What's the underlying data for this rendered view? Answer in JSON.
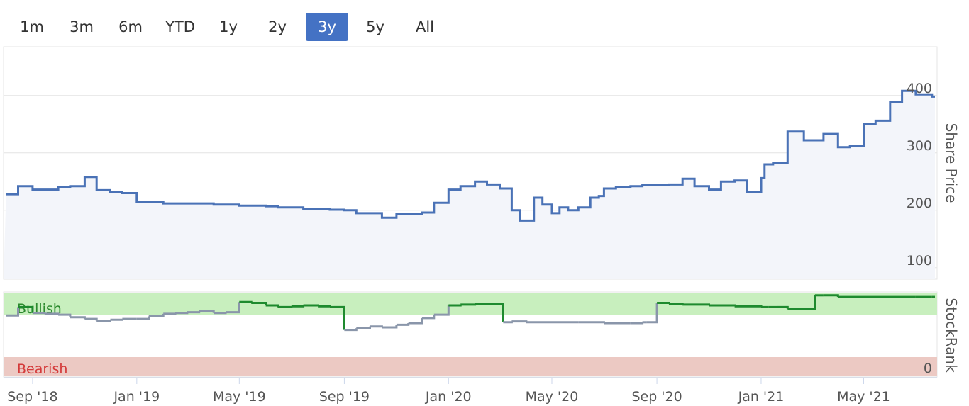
{
  "range_selector": {
    "buttons": [
      {
        "label": "1m"
      },
      {
        "label": "3m"
      },
      {
        "label": "6m"
      },
      {
        "label": "YTD"
      },
      {
        "label": "1y"
      },
      {
        "label": "2y"
      },
      {
        "label": "3y"
      },
      {
        "label": "5y"
      },
      {
        "label": "All"
      }
    ],
    "selected": "3y"
  },
  "colors": {
    "price_line": "#4a72b6",
    "price_fill": "#f3f5fa",
    "rank_above_line": "#1e8a2e",
    "rank_below_line": "#8a96aa",
    "bullish_band": "#c8efbe",
    "bearish_band": "#ecc9c3",
    "bullish_text": "#2c8a2e",
    "bearish_text": "#d43a3a"
  },
  "chart_data": [
    {
      "type": "area",
      "ylabel": "Share Price",
      "yticks": [
        100,
        200,
        300,
        400
      ],
      "ylim": [
        80,
        480
      ],
      "x": [
        "2018-08-01",
        "2018-08-15",
        "2018-09-01",
        "2018-10-01",
        "2018-10-15",
        "2018-11-01",
        "2018-11-15",
        "2018-12-01",
        "2018-12-15",
        "2019-01-01",
        "2019-01-15",
        "2019-02-01",
        "2019-02-15",
        "2019-03-01",
        "2019-04-01",
        "2019-05-01",
        "2019-06-01",
        "2019-06-15",
        "2019-07-15",
        "2019-08-15",
        "2019-09-01",
        "2019-09-15",
        "2019-10-15",
        "2019-11-01",
        "2019-11-15",
        "2019-12-01",
        "2019-12-15",
        "2020-01-01",
        "2020-01-15",
        "2020-02-01",
        "2020-02-15",
        "2020-03-01",
        "2020-03-15",
        "2020-03-25",
        "2020-04-10",
        "2020-04-20",
        "2020-05-01",
        "2020-05-10",
        "2020-05-20",
        "2020-06-01",
        "2020-06-15",
        "2020-06-25",
        "2020-07-01",
        "2020-07-15",
        "2020-08-01",
        "2020-08-15",
        "2020-09-01",
        "2020-09-15",
        "2020-10-01",
        "2020-10-15",
        "2020-11-01",
        "2020-11-15",
        "2020-12-01",
        "2020-12-15",
        "2021-01-01",
        "2021-01-05",
        "2021-01-15",
        "2021-02-01",
        "2021-02-20",
        "2021-03-01",
        "2021-03-15",
        "2021-04-01",
        "2021-04-15",
        "2021-04-25",
        "2021-05-01",
        "2021-05-15",
        "2021-06-01",
        "2021-06-15",
        "2021-07-01",
        "2021-07-20"
      ],
      "series": [
        {
          "values": [
            228,
            242,
            236,
            240,
            242,
            258,
            235,
            232,
            230,
            214,
            215,
            212,
            212,
            212,
            210,
            208,
            207,
            205,
            202,
            201,
            200,
            195,
            187,
            193,
            193,
            196,
            213,
            236,
            242,
            250,
            245,
            238,
            200,
            182,
            222,
            210,
            195,
            205,
            200,
            205,
            222,
            225,
            238,
            240,
            242,
            244,
            244,
            245,
            255,
            242,
            236,
            250,
            252,
            232,
            256,
            280,
            283,
            337,
            322,
            322,
            333,
            310,
            312,
            312,
            350,
            356,
            388,
            408,
            402,
            398
          ]
        }
      ]
    },
    {
      "type": "line",
      "ylabel": "StockRank",
      "band_labels": [
        "Bullish",
        "Bearish"
      ],
      "yticks": [
        0
      ],
      "ylim": [
        0,
        100
      ],
      "x": [
        "2018-08-01",
        "2018-08-15",
        "2018-09-01",
        "2018-09-15",
        "2018-10-01",
        "2018-10-15",
        "2018-11-01",
        "2018-11-15",
        "2018-12-01",
        "2018-12-15",
        "2019-01-01",
        "2019-01-15",
        "2019-02-01",
        "2019-02-15",
        "2019-03-01",
        "2019-03-15",
        "2019-04-01",
        "2019-04-15",
        "2019-05-01",
        "2019-05-15",
        "2019-06-01",
        "2019-06-15",
        "2019-07-01",
        "2019-07-15",
        "2019-08-01",
        "2019-08-15",
        "2019-08-20",
        "2019-09-01",
        "2019-09-15",
        "2019-10-01",
        "2019-10-15",
        "2019-11-01",
        "2019-11-15",
        "2019-12-01",
        "2019-12-15",
        "2020-01-01",
        "2020-01-15",
        "2020-02-01",
        "2020-02-15",
        "2020-03-01",
        "2020-03-05",
        "2020-03-15",
        "2020-04-01",
        "2020-05-01",
        "2020-06-01",
        "2020-07-01",
        "2020-08-01",
        "2020-08-15",
        "2020-08-20",
        "2020-09-01",
        "2020-09-15",
        "2020-10-01",
        "2020-11-01",
        "2020-12-01",
        "2021-01-01",
        "2021-01-10",
        "2021-01-20",
        "2021-02-01",
        "2021-03-01",
        "2021-03-05",
        "2021-03-15",
        "2021-04-01",
        "2021-05-01",
        "2021-06-01",
        "2021-07-01",
        "2021-07-20"
      ],
      "series": [
        {
          "values": [
            72,
            82,
            75,
            74,
            73,
            70,
            68,
            66,
            67,
            68,
            68,
            71,
            74,
            75,
            76,
            77,
            75,
            76,
            88,
            87,
            84,
            82,
            83,
            84,
            83,
            82,
            82,
            55,
            57,
            59,
            58,
            61,
            63,
            69,
            73,
            84,
            85,
            86,
            86,
            86,
            64,
            65,
            64,
            64,
            64,
            63,
            63,
            64,
            64,
            87,
            86,
            85,
            84,
            83,
            82,
            82,
            82,
            80,
            80,
            96,
            96,
            94,
            94,
            94,
            94,
            94
          ]
        }
      ]
    }
  ],
  "x_axis": {
    "tick_labels": [
      "Sep '18",
      "Jan '19",
      "May '19",
      "Sep '19",
      "Jan '20",
      "May '20",
      "Sep '20",
      "Jan '21",
      "May '21"
    ],
    "tick_dates": [
      "2018-09-01",
      "2019-01-01",
      "2019-05-01",
      "2019-09-01",
      "2020-01-01",
      "2020-05-01",
      "2020-09-01",
      "2021-01-01",
      "2021-05-01"
    ]
  }
}
